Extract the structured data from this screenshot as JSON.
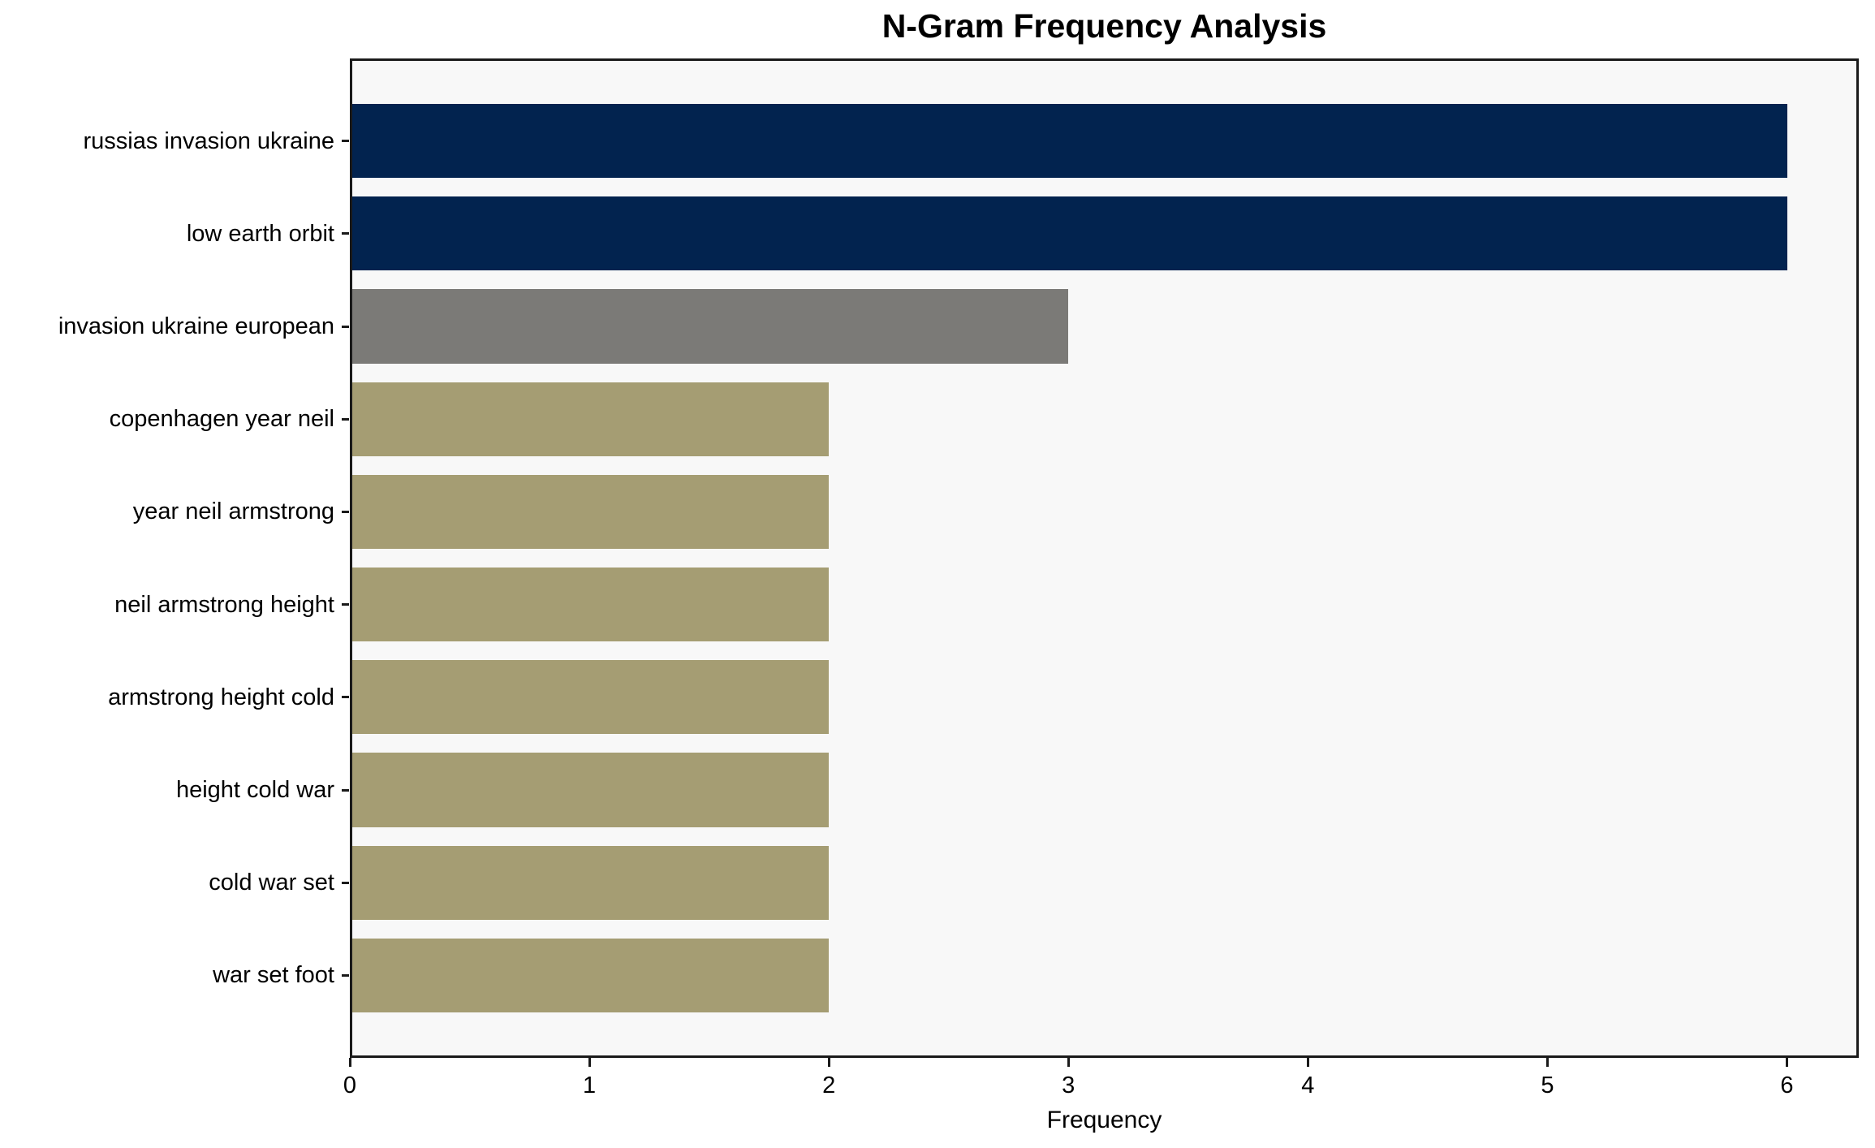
{
  "chart_data": {
    "type": "bar",
    "orientation": "horizontal",
    "title": "N-Gram Frequency Analysis",
    "xlabel": "Frequency",
    "ylabel": "",
    "categories": [
      "russias invasion ukraine",
      "low earth orbit",
      "invasion ukraine european",
      "copenhagen year neil",
      "year neil armstrong",
      "neil armstrong height",
      "armstrong height cold",
      "height cold war",
      "cold war set",
      "war set foot"
    ],
    "values": [
      6,
      6,
      3,
      2,
      2,
      2,
      2,
      2,
      2,
      2
    ],
    "bar_colors": [
      "#02234f",
      "#02234f",
      "#7b7a77",
      "#a59d73",
      "#a59d73",
      "#a59d73",
      "#a59d73",
      "#a59d73",
      "#a59d73",
      "#a59d73"
    ],
    "xticks": [
      0,
      1,
      2,
      3,
      4,
      5,
      6
    ],
    "xlim": [
      0,
      6.3
    ],
    "grid": false,
    "legend": "none",
    "colors": {
      "navy": "#02234f",
      "gray": "#7b7a77",
      "khaki": "#a59d73",
      "plot_background": "#f8f8f8",
      "page_background": "#ffffff",
      "spine": "#1a1a1a"
    }
  }
}
